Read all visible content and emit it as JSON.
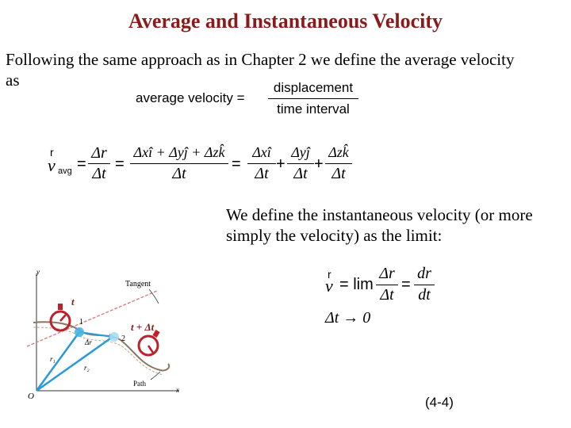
{
  "slide": {
    "title": "Average and Instantaneous Velocity",
    "intro": "Following the same approach as in Chapter 2 we define the average velocity as",
    "instantaneous_text": "We define the instantaneous velocity (or more simply the velocity) as the limit:",
    "equation_number": "(4-4)"
  },
  "avg_formula": {
    "lhs": "average velocity =",
    "numerator": "displacement",
    "denominator": "time interval"
  },
  "vavg_formula": {
    "v": "v",
    "subscript": "avg",
    "eq": "=",
    "plus": "+",
    "delta_r": "Δr",
    "delta_t": "Δt",
    "sum": "Δxî + Δyĵ + Δzk̂",
    "term_x": "Δxî",
    "term_y": "Δyĵ",
    "term_z": "Δzk̂"
  },
  "limit_formula": {
    "v": "v",
    "eq": "= lim",
    "eq2": "=",
    "delta_r": "Δr",
    "delta_t": "Δt",
    "dr": "dr",
    "dt": "dt",
    "limit": "Δt → 0"
  },
  "figure": {
    "y_axis": "y",
    "x_axis": "x",
    "origin": "O",
    "tangent": "Tangent",
    "path": "Path",
    "t_label": "t",
    "t_dt_label": "t + Δt",
    "point1": "1",
    "point2": "2",
    "r1": "r₁",
    "r2": "r₂",
    "dr": "Δr",
    "colors": {
      "vectors": "#2a9bd6",
      "tangent": "#d98080",
      "path": "#8a7560",
      "clock": "#c0202a"
    }
  }
}
